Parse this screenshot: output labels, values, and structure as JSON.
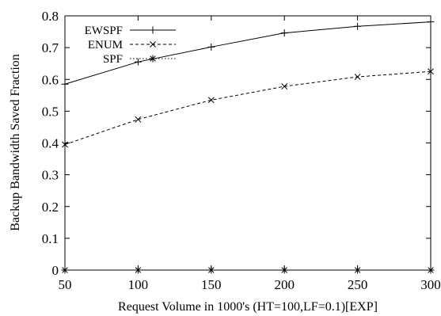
{
  "chart_data": {
    "type": "line",
    "title": "",
    "xlabel": "Request Volume in 1000's (HT=100,LF=0.1)[EXP]",
    "ylabel": "Backup Bandwidth Saved Fraction",
    "xlim": [
      50,
      300
    ],
    "ylim": [
      0,
      0.8
    ],
    "xticks": [
      50,
      100,
      150,
      200,
      250,
      300
    ],
    "yticks": [
      0,
      0.1,
      0.2,
      0.3,
      0.4,
      0.5,
      0.6,
      0.7,
      0.8
    ],
    "grid": false,
    "legend_position": "top-left",
    "x": [
      50,
      100,
      150,
      200,
      250,
      300
    ],
    "series": [
      {
        "name": "EWSPF",
        "marker": "plus",
        "line": "solid",
        "color": "#000000",
        "values": [
          0.585,
          0.655,
          0.702,
          0.746,
          0.767,
          0.781
        ]
      },
      {
        "name": "ENUM",
        "marker": "cross",
        "line": "dashed",
        "color": "#000000",
        "values": [
          0.395,
          0.474,
          0.535,
          0.578,
          0.608,
          0.625
        ]
      },
      {
        "name": "SPF",
        "marker": "star",
        "line": "dotted",
        "color": "#000000",
        "values": [
          0,
          0,
          0,
          0,
          0,
          0
        ]
      }
    ]
  }
}
